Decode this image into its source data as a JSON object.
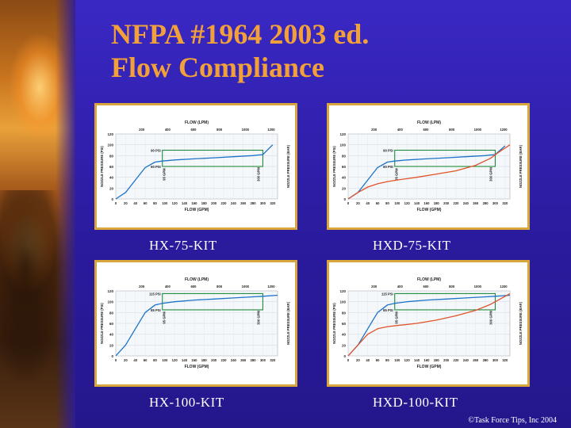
{
  "slide": {
    "title_line1": "NFPA #1964 2003 ed.",
    "title_line2": "Flow Compliance",
    "copyright": "©Task Force Tips, Inc 2004"
  },
  "chart_data": [
    {
      "type": "line",
      "caption": "HX-75-KIT",
      "top_axis_label": "FLOW (LPM)",
      "top_ticks": [
        "200",
        "400",
        "600",
        "800",
        "1000",
        "1200"
      ],
      "xlabel": "FLOW (GPM)",
      "x_ticks": [
        "0",
        "20",
        "40",
        "60",
        "80",
        "100",
        "120",
        "140",
        "160",
        "180",
        "200",
        "220",
        "240",
        "260",
        "280",
        "300",
        "320"
      ],
      "ylabel": "NOZZLE PRESSURE (PSI)",
      "y_ticks": [
        "0",
        "20",
        "40",
        "60",
        "80",
        "100",
        "120"
      ],
      "ylabel_right": "NOZZLE PRESSURE (BAR)",
      "ylim": [
        0,
        120
      ],
      "xlim": [
        0,
        330
      ],
      "box_labels": [
        "90 PSI",
        "60 PSI",
        "95 GPM",
        "300 GPM"
      ],
      "box": {
        "flow": [
          95,
          300
        ],
        "psi": [
          60,
          90
        ]
      },
      "series": [
        {
          "color": "#1e73c8",
          "x": [
            0,
            20,
            40,
            60,
            80,
            95,
            120,
            160,
            200,
            240,
            280,
            300,
            320
          ],
          "y": [
            0,
            12,
            35,
            58,
            68,
            70,
            72,
            74,
            76,
            78,
            80,
            82,
            100
          ]
        }
      ]
    },
    {
      "type": "line",
      "caption": "HXD-75-KIT",
      "top_axis_label": "FLOW (LPM)",
      "top_ticks": [
        "200",
        "400",
        "600",
        "800",
        "1000",
        "1200"
      ],
      "xlabel": "FLOW (GPM)",
      "x_ticks": [
        "0",
        "20",
        "40",
        "60",
        "80",
        "100",
        "120",
        "140",
        "160",
        "180",
        "200",
        "220",
        "240",
        "260",
        "280",
        "300",
        "320"
      ],
      "ylabel": "NOZZLE PRESSURE (PSI)",
      "y_ticks": [
        "0",
        "20",
        "40",
        "60",
        "80",
        "100",
        "120"
      ],
      "ylabel_right": "NOZZLE PRESSURE (BAR)",
      "ylim": [
        0,
        120
      ],
      "xlim": [
        0,
        330
      ],
      "box_labels": [
        "90 PSI",
        "60 PSI",
        "95 GPM",
        "300 GPM"
      ],
      "box": {
        "flow": [
          95,
          300
        ],
        "psi": [
          60,
          90
        ]
      },
      "series": [
        {
          "color": "#1e73c8",
          "x": [
            0,
            20,
            40,
            60,
            80,
            95,
            120,
            160,
            200,
            240,
            280,
            300,
            320
          ],
          "y": [
            0,
            12,
            35,
            58,
            68,
            70,
            72,
            74,
            76,
            78,
            80,
            82,
            98
          ]
        },
        {
          "color": "#e0532a",
          "x": [
            0,
            20,
            40,
            60,
            80,
            100,
            140,
            180,
            220,
            260,
            290,
            310,
            330
          ],
          "y": [
            0,
            12,
            22,
            28,
            32,
            35,
            40,
            46,
            52,
            62,
            75,
            88,
            100
          ]
        }
      ]
    },
    {
      "type": "line",
      "caption": "HX-100-KIT",
      "top_axis_label": "FLOW (LPM)",
      "top_ticks": [
        "200",
        "400",
        "600",
        "800",
        "1000",
        "1200"
      ],
      "xlabel": "FLOW (GPM)",
      "x_ticks": [
        "0",
        "20",
        "40",
        "60",
        "80",
        "100",
        "120",
        "140",
        "160",
        "180",
        "200",
        "220",
        "240",
        "260",
        "280",
        "300",
        "320"
      ],
      "ylabel": "NOZZLE PRESSURE (PSI)",
      "y_ticks": [
        "0",
        "20",
        "40",
        "60",
        "80",
        "100",
        "120"
      ],
      "ylabel_right": "NOZZLE PRESSURE (BAR)",
      "ylim": [
        0,
        120
      ],
      "xlim": [
        0,
        330
      ],
      "box_labels": [
        "115 PSI",
        "85 PSI",
        "95 GPM",
        "300 GPM"
      ],
      "box": {
        "flow": [
          95,
          300
        ],
        "psi": [
          85,
          115
        ]
      },
      "series": [
        {
          "color": "#1e73c8",
          "x": [
            0,
            20,
            40,
            60,
            80,
            95,
            120,
            160,
            200,
            240,
            280,
            300,
            330
          ],
          "y": [
            0,
            20,
            50,
            80,
            94,
            97,
            100,
            103,
            105,
            107,
            109,
            110,
            112
          ]
        }
      ]
    },
    {
      "type": "line",
      "caption": "HXD-100-KIT",
      "top_axis_label": "FLOW (LPM)",
      "top_ticks": [
        "200",
        "400",
        "600",
        "800",
        "1000",
        "1200"
      ],
      "xlabel": "FLOW (GPM)",
      "x_ticks": [
        "0",
        "20",
        "40",
        "60",
        "80",
        "100",
        "120",
        "140",
        "160",
        "180",
        "200",
        "220",
        "240",
        "260",
        "280",
        "300",
        "320"
      ],
      "ylabel": "NOZZLE PRESSURE (PSI)",
      "y_ticks": [
        "0",
        "20",
        "40",
        "60",
        "80",
        "100",
        "120"
      ],
      "ylabel_right": "NOZZLE PRESSURE (BAR)",
      "ylim": [
        0,
        120
      ],
      "xlim": [
        0,
        330
      ],
      "box_labels": [
        "115 PSI",
        "85 PSI",
        "95 GPM",
        "300 GPM"
      ],
      "box": {
        "flow": [
          95,
          300
        ],
        "psi": [
          85,
          115
        ]
      },
      "series": [
        {
          "color": "#1e73c8",
          "x": [
            0,
            20,
            40,
            60,
            80,
            95,
            120,
            160,
            200,
            240,
            280,
            300,
            330
          ],
          "y": [
            0,
            20,
            50,
            80,
            94,
            97,
            100,
            103,
            105,
            107,
            109,
            110,
            112
          ]
        },
        {
          "color": "#e0532a",
          "x": [
            0,
            20,
            40,
            60,
            80,
            100,
            140,
            180,
            220,
            260,
            290,
            310,
            330
          ],
          "y": [
            0,
            20,
            40,
            50,
            54,
            56,
            60,
            66,
            74,
            84,
            95,
            105,
            115
          ]
        }
      ]
    }
  ]
}
